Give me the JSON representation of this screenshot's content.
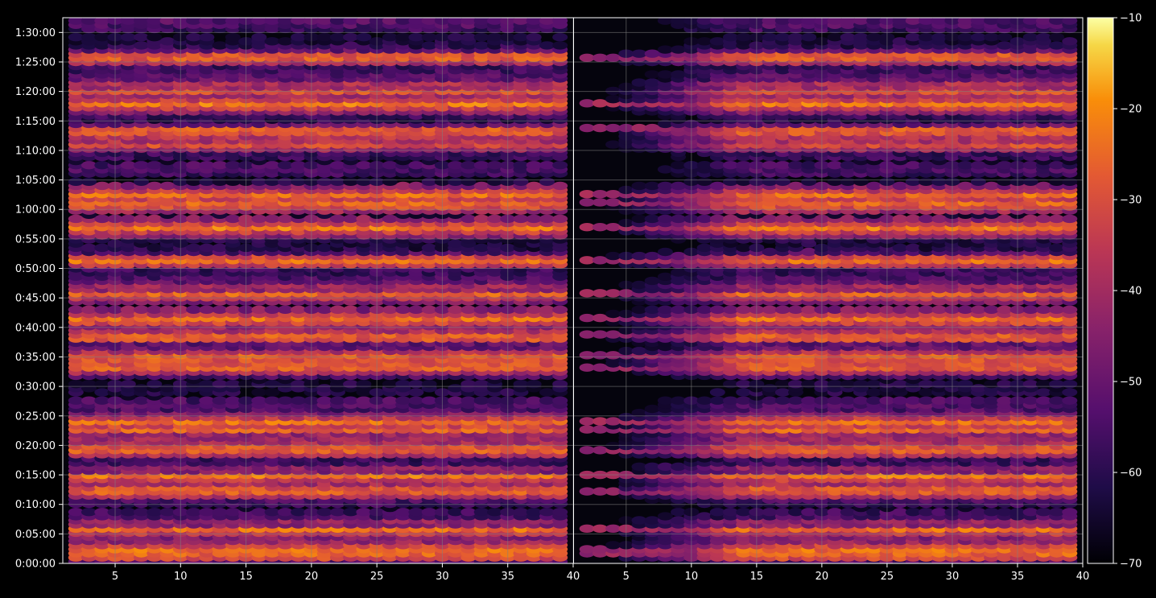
{
  "chart_data": {
    "type": "heatmap",
    "description_of_axes": {
      "x_ticks": [
        5,
        10,
        15,
        20,
        25,
        30,
        35,
        40
      ],
      "x_range": [
        1,
        40
      ],
      "y_ticks": [
        "0:00:00",
        "0:05:00",
        "0:10:00",
        "0:15:00",
        "0:20:00",
        "0:25:00",
        "0:30:00",
        "0:35:00",
        "0:40:00",
        "0:45:00",
        "0:50:00",
        "0:55:00",
        "1:00:00",
        "1:05:00",
        "1:10:00",
        "1:15:00",
        "1:20:00",
        "1:25:00",
        "1:30:00"
      ],
      "y_range_minutes": [
        0,
        92.5
      ]
    },
    "panels": [
      {
        "name": "left",
        "x_labels": [
          "5",
          "10",
          "15",
          "20",
          "25",
          "30",
          "35",
          "40"
        ],
        "ramp_up": false
      },
      {
        "name": "right",
        "x_labels": [
          "5",
          "10",
          "15",
          "20",
          "25",
          "30",
          "35",
          "40"
        ],
        "ramp_up": true
      }
    ],
    "colorbar": {
      "colormap": "inferno",
      "range": [
        -70,
        -10
      ],
      "ticks": [
        "−10",
        "−20",
        "−30",
        "−40",
        "−50",
        "−60",
        "−70"
      ]
    },
    "bright_rows_minutes": [
      1.5,
      2.5,
      6,
      12.5,
      15,
      19.5,
      22.5,
      24,
      33.5,
      35,
      38.5,
      41.5,
      46,
      51.5,
      57,
      61,
      62.5,
      71.5,
      73.5,
      78,
      80.5,
      86
    ],
    "colors": {
      "background": "#000000",
      "grid": "#808080",
      "text": "#ffffff"
    }
  }
}
